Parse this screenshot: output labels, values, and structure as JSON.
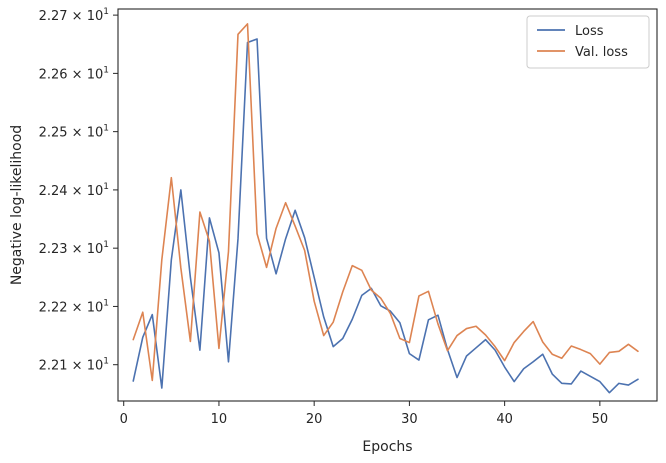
{
  "chart_data": {
    "type": "line",
    "xlabel": "Epochs",
    "ylabel": "Negative log-likelihood",
    "xlim": [
      -0.6,
      56.0
    ],
    "ylim": [
      22.0377,
      22.7105
    ],
    "x_ticks": [
      0,
      10,
      20,
      30,
      40,
      50
    ],
    "y_ticks": [
      {
        "value": 22.1,
        "mantissa": "2.21"
      },
      {
        "value": 22.2,
        "mantissa": "2.22"
      },
      {
        "value": 22.3,
        "mantissa": "2.23"
      },
      {
        "value": 22.4,
        "mantissa": "2.24"
      },
      {
        "value": 22.5,
        "mantissa": "2.25"
      },
      {
        "value": 22.6,
        "mantissa": "2.26"
      },
      {
        "value": 22.7,
        "mantissa": "2.27"
      }
    ],
    "y_tick_base": "10",
    "y_tick_exponent": "1",
    "y_tick_times": "×",
    "grid": false,
    "legend_position": "top-right",
    "x": [
      1,
      2,
      3,
      4,
      5,
      6,
      7,
      8,
      9,
      10,
      11,
      12,
      13,
      14,
      15,
      16,
      17,
      18,
      19,
      20,
      21,
      22,
      23,
      24,
      25,
      26,
      27,
      28,
      29,
      30,
      31,
      32,
      33,
      34,
      35,
      36,
      37,
      38,
      39,
      40,
      41,
      42,
      43,
      44,
      45,
      46,
      47,
      48,
      49,
      50,
      51,
      52,
      53,
      54
    ],
    "series": [
      {
        "name": "Loss",
        "color": "#4c72b0",
        "values": [
          22.072,
          22.147,
          22.186,
          22.06,
          22.28,
          22.4,
          22.25,
          22.125,
          22.352,
          22.292,
          22.105,
          22.316,
          22.653,
          22.659,
          22.317,
          22.256,
          22.316,
          22.365,
          22.318,
          22.25,
          22.182,
          22.131,
          22.145,
          22.178,
          22.219,
          22.231,
          22.201,
          22.192,
          22.172,
          22.119,
          22.108,
          22.177,
          22.185,
          22.126,
          22.078,
          22.115,
          22.129,
          22.143,
          22.125,
          22.096,
          22.071,
          22.093,
          22.105,
          22.118,
          22.084,
          22.068,
          22.067,
          22.089,
          22.08,
          22.071,
          22.052,
          22.068,
          22.065,
          22.075
        ]
      },
      {
        "name": "Val. loss",
        "color": "#dd8452",
        "values": [
          22.143,
          22.19,
          22.073,
          22.28,
          22.421,
          22.266,
          22.14,
          22.362,
          22.312,
          22.128,
          22.294,
          22.667,
          22.685,
          22.325,
          22.267,
          22.334,
          22.378,
          22.338,
          22.296,
          22.209,
          22.15,
          22.173,
          22.225,
          22.27,
          22.262,
          22.228,
          22.214,
          22.188,
          22.145,
          22.138,
          22.218,
          22.226,
          22.17,
          22.124,
          22.15,
          22.162,
          22.166,
          22.151,
          22.131,
          22.107,
          22.138,
          22.157,
          22.174,
          22.139,
          22.118,
          22.111,
          22.132,
          22.126,
          22.119,
          22.101,
          22.121,
          22.123,
          22.135,
          22.123
        ]
      }
    ]
  }
}
